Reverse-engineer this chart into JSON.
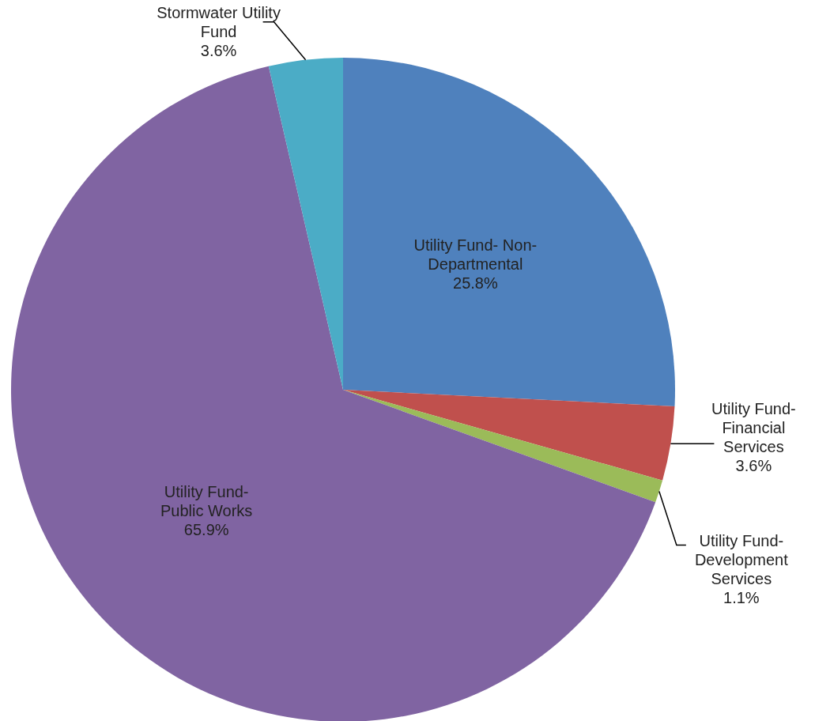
{
  "chart_data": {
    "type": "pie",
    "categories": [
      "Utility Fund- Non-Departmental",
      "Utility Fund- Financial Services",
      "Utility Fund- Development Services",
      "Utility Fund- Public Works",
      "Stormwater Utility Fund"
    ],
    "values": [
      25.8,
      3.6,
      1.1,
      65.9,
      3.6
    ],
    "colors": [
      "#4f81bd",
      "#c0504d",
      "#9bbb59",
      "#8064a2",
      "#4bacc6"
    ],
    "value_labels": [
      "25.8%",
      "3.6%",
      "1.1%",
      "65.9%",
      "3.6%"
    ]
  }
}
